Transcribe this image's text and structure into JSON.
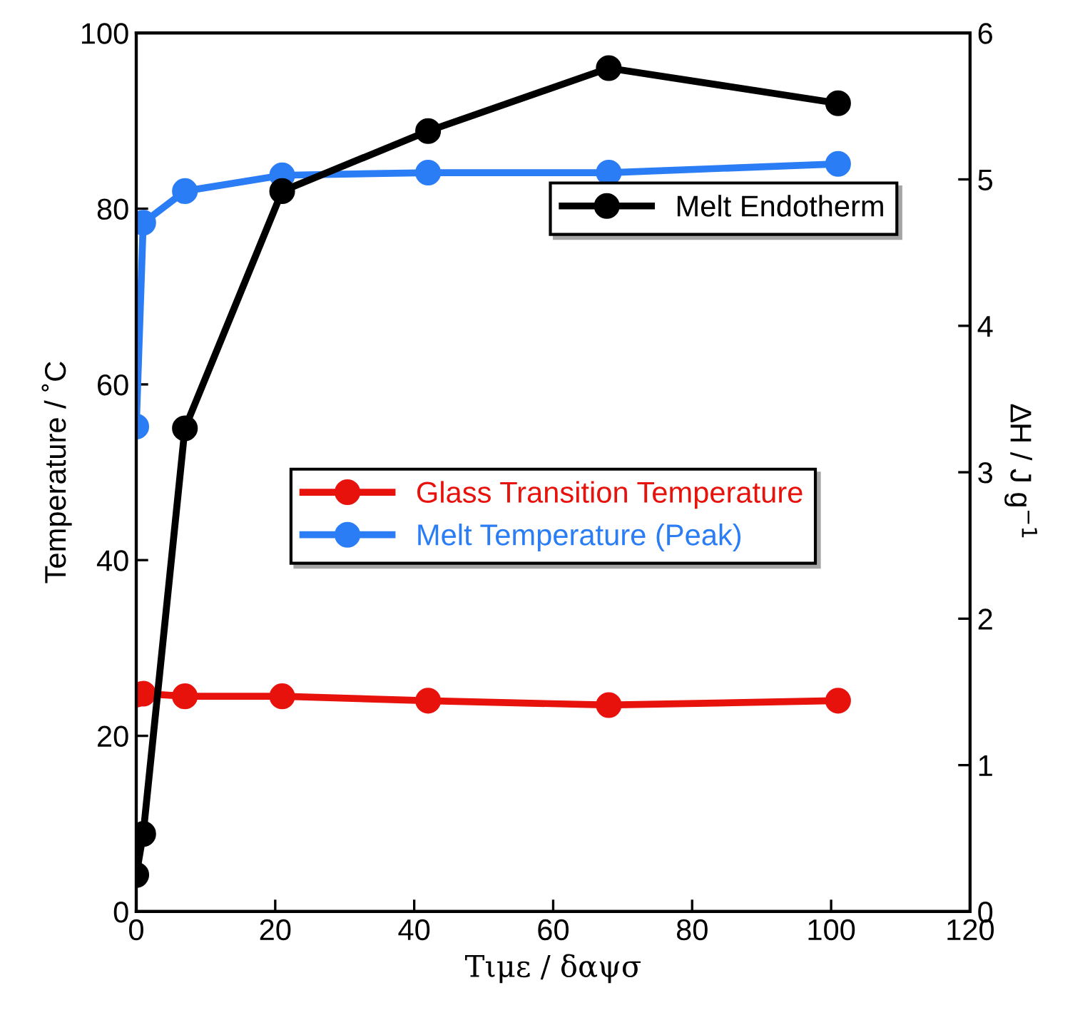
{
  "chart_data": {
    "type": "line",
    "xlabel": "Τιμε / δαψσ",
    "ylabel": "Temperature / ˚C",
    "y2label": "∆H / J g$^{−1}$",
    "xlim": [
      0,
      120
    ],
    "xticks": [
      0,
      20,
      40,
      60,
      80,
      100,
      120
    ],
    "ylim": [
      0,
      100
    ],
    "yticks": [
      0,
      20,
      40,
      60,
      80,
      100
    ],
    "y2lim": [
      0,
      6
    ],
    "y2ticks": [
      0,
      1,
      2,
      3,
      4,
      5,
      6
    ],
    "x": [
      0,
      1,
      7,
      21,
      42,
      68,
      101
    ],
    "marker": "circle",
    "line_style": "solid",
    "grid": false,
    "legend": "center",
    "series": [
      {
        "name": "Glass Transition Temperature",
        "color": "#e8120c",
        "values": [
          24.7,
          24.8,
          24.5,
          24.5,
          24.0,
          23.5,
          24.0
        ]
      },
      {
        "name": "Melt Temperature (Peak)",
        "color": "#2a7df5",
        "values": [
          55.2,
          78.4,
          82.0,
          83.8,
          84.1,
          84.1,
          85.1
        ]
      },
      {
        "name": "Melt Endotherm",
        "color": "#000000",
        "axis": "y2",
        "values": [
          0.25,
          0.53,
          3.3,
          4.92,
          5.33,
          5.76,
          5.52
        ]
      }
    ]
  }
}
